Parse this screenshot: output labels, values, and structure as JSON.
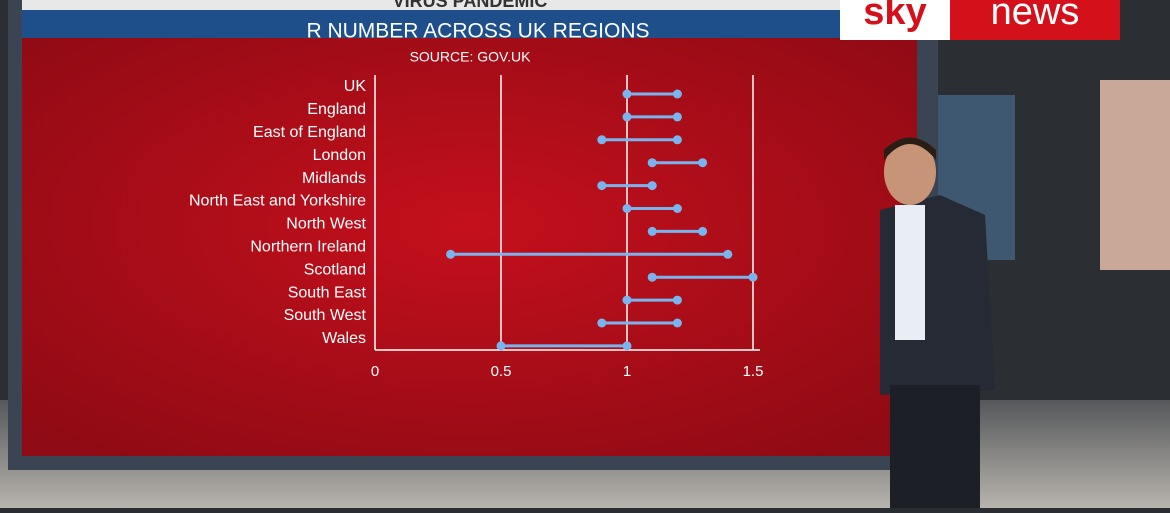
{
  "broadcast": {
    "logo_left": "sky",
    "logo_right": "news",
    "banner": "VIRUS PANDEMIC"
  },
  "chart_data": {
    "type": "dumbbell",
    "title": "R NUMBER ACROSS UK REGIONS",
    "subtitle": "SOURCE: GOV.UK",
    "categories": [
      "UK",
      "England",
      "East of England",
      "London",
      "Midlands",
      "North East and Yorkshire",
      "North West",
      "Northern Ireland",
      "Scotland",
      "South East",
      "South West",
      "Wales"
    ],
    "series": [
      {
        "color": "#7ab4ee",
        "values": [
          1.0,
          1.0,
          0.9,
          1.1,
          0.9,
          1.0,
          1.1,
          0.3,
          1.1,
          1.0,
          0.9,
          0.5
        ]
      },
      {
        "color": "#7ab4ee",
        "values": [
          1.2,
          1.2,
          1.2,
          1.3,
          1.1,
          1.2,
          1.3,
          1.4,
          1.5,
          1.2,
          1.2,
          1.0
        ]
      }
    ],
    "xlim": [
      0,
      1.5
    ],
    "xticks": [
      0,
      0.5,
      1,
      1.5
    ],
    "grid": true
  }
}
